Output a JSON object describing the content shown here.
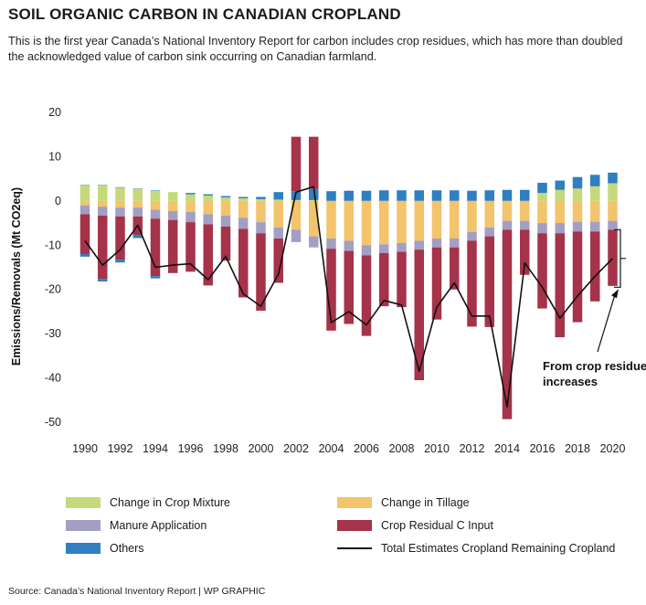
{
  "header": {
    "title": "SOIL ORGANIC CARBON IN CANADIAN CROPLAND",
    "subtitle": "This is the first year Canada’s National Inventory Report for carbon includes crop residues, which has more than doubled the acknowledged value of carbon sink occurring on Canadian farmland."
  },
  "source": "Source: Canada’s National Inventory Report  |  WP GRAPHIC",
  "chart_data": {
    "type": "bar",
    "stacked": true,
    "title": "SOIL ORGANIC CARBON IN CANADIAN CROPLAND",
    "ylabel": "Emissions/Removals (Mt CO2eq)",
    "ylim": [
      -50,
      20
    ],
    "yticks": [
      "20",
      "10",
      "0",
      "-10",
      "-20",
      "-30",
      "-40",
      "-50"
    ],
    "xtick_labels": [
      "1990",
      "1992",
      "1994",
      "1996",
      "1998",
      "2000",
      "2002",
      "2004",
      "2006",
      "2008",
      "2010",
      "2012",
      "2014",
      "2016",
      "2018",
      "2020"
    ],
    "categories": [
      1990,
      1991,
      1992,
      1993,
      1994,
      1995,
      1996,
      1997,
      1998,
      1999,
      2000,
      2001,
      2002,
      2003,
      2004,
      2005,
      2006,
      2007,
      2008,
      2009,
      2010,
      2011,
      2012,
      2013,
      2014,
      2015,
      2016,
      2017,
      2018,
      2019,
      2020
    ],
    "colors": {
      "change_in_crop_mixture": "#c5d97a",
      "change_in_tillage": "#f2c46b",
      "manure_application": "#a39fc4",
      "crop_residual": "#a5334a",
      "others": "#2f7fc1",
      "total_line": "#111111"
    },
    "series": [
      {
        "name": "Change in Crop Mixture",
        "key": "change_in_crop_mixture",
        "values": [
          3.5,
          3.5,
          3.0,
          2.7,
          2.3,
          2.0,
          1.5,
          1.2,
          0.8,
          0.6,
          0.4,
          0.3,
          0.2,
          0.2,
          0,
          0,
          0,
          0,
          0,
          0,
          0,
          0,
          0,
          0,
          0,
          0,
          1.8,
          2.5,
          2.8,
          3.3,
          4.0
        ]
      },
      {
        "name": "Others",
        "key": "others",
        "values": [
          0.1,
          0.1,
          0.1,
          0.1,
          0.1,
          0,
          0.3,
          0.3,
          0.3,
          0.3,
          0.5,
          1.7,
          2.0,
          2.5,
          2.2,
          2.3,
          2.3,
          2.4,
          2.4,
          2.4,
          2.4,
          2.4,
          2.3,
          2.4,
          2.5,
          2.5,
          2.3,
          2.1,
          2.6,
          2.6,
          2.4
        ]
      },
      {
        "name": "Change in Tillage",
        "key": "change_in_tillage",
        "values": [
          -1.0,
          -1.3,
          -1.5,
          -1.5,
          -2.0,
          -2.3,
          -2.5,
          -3.0,
          -3.3,
          -3.8,
          -4.8,
          -6.0,
          -6.5,
          -8.0,
          -8.5,
          -9.0,
          -10.0,
          -9.8,
          -9.5,
          -9.0,
          -8.5,
          -8.5,
          -7.0,
          -6.0,
          -4.5,
          -4.5,
          -5.0,
          -5.0,
          -4.7,
          -4.7,
          -4.5
        ]
      },
      {
        "name": "Manure Application",
        "key": "manure_application",
        "values": [
          -2.0,
          -2.0,
          -2.0,
          -2.0,
          -2.0,
          -2.0,
          -2.3,
          -2.3,
          -2.5,
          -2.5,
          -2.5,
          -2.5,
          -2.8,
          -2.5,
          -2.3,
          -2.3,
          -2.3,
          -2.0,
          -2.0,
          -2.0,
          -2.0,
          -2.0,
          -2.0,
          -2.0,
          -2.0,
          -2.0,
          -2.3,
          -2.3,
          -2.2,
          -2.2,
          -2.0
        ]
      },
      {
        "name": "Crop Residual C Input",
        "key": "crop_residual",
        "values": [
          -9.0,
          -14.3,
          -9.8,
          -4.3,
          -13.0,
          -12.0,
          -11.2,
          -13.8,
          -7.7,
          -15.5,
          -17.5,
          -10.0,
          12.3,
          11.8,
          -18.5,
          -16.5,
          -18.2,
          -12.0,
          -12.5,
          -29.5,
          -16.3,
          -9.5,
          -19.4,
          -20.5,
          -42.8,
          -10.2,
          -17.0,
          -23.5,
          -20.5,
          -15.8,
          -12.7
        ]
      },
      {
        "name": "Others",
        "key": "others_negative",
        "values": [
          -0.6,
          -0.6,
          -0.6,
          -0.6,
          -0.5,
          0,
          0,
          0,
          0,
          0,
          0,
          0,
          0,
          0,
          0,
          0,
          0,
          0,
          0,
          0,
          0,
          0,
          0,
          0,
          0,
          0,
          0,
          0,
          0,
          0,
          0
        ]
      }
    ],
    "total_line": {
      "name": "Total Estimates Cropland Remaining Cropland",
      "values": [
        -9.0,
        -14.5,
        -11.0,
        -5.5,
        -15.0,
        -14.5,
        -14.2,
        -17.8,
        -12.5,
        -21.0,
        -23.8,
        -16.5,
        2.0,
        3.2,
        -27.5,
        -25.0,
        -28.0,
        -22.5,
        -23.5,
        -38.5,
        -24.0,
        -18.5,
        -26.0,
        -26.0,
        -46.5,
        -14.0,
        -19.5,
        -26.5,
        -21.5,
        -17.0,
        -13.0
      ]
    },
    "annotation": {
      "line1": "From crop residue",
      "line2": "increases"
    },
    "legend": {
      "placement": "bottom",
      "entries": [
        "Change in Crop Mixture",
        "Change in Tillage",
        "Manure Application",
        "Crop Residual C Input",
        "Others",
        "Total Estimates Cropland Remaining Cropland"
      ]
    },
    "grid": false
  }
}
